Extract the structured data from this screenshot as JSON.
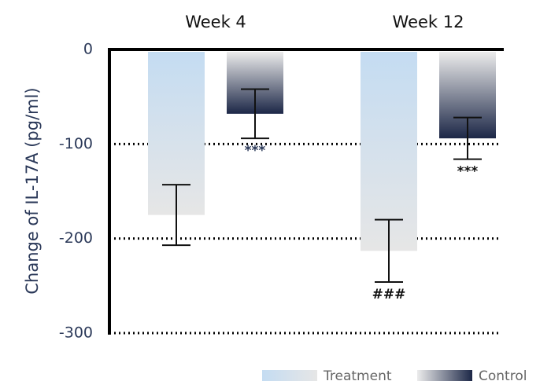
{
  "chart_data": {
    "type": "bar",
    "y_label": "Change of IL-17A (pg/ml)",
    "categories": [
      "Week 4",
      "Week 12"
    ],
    "ylim": [
      -300,
      0
    ],
    "yticks": [
      0,
      -100,
      -200,
      -300
    ],
    "grid": true,
    "series": [
      {
        "name": "Treatment",
        "colors": [
          "#c4dcf2",
          "#e6e6e6"
        ],
        "values": [
          -175,
          -213
        ],
        "errors": [
          32,
          33
        ],
        "annotations": [
          null,
          "###"
        ]
      },
      {
        "name": "Control",
        "colors": [
          "#ececec",
          "#1c2747"
        ],
        "values": [
          -68,
          -94
        ],
        "errors": [
          26,
          22
        ],
        "annotations": [
          "***",
          "***"
        ]
      }
    ]
  }
}
